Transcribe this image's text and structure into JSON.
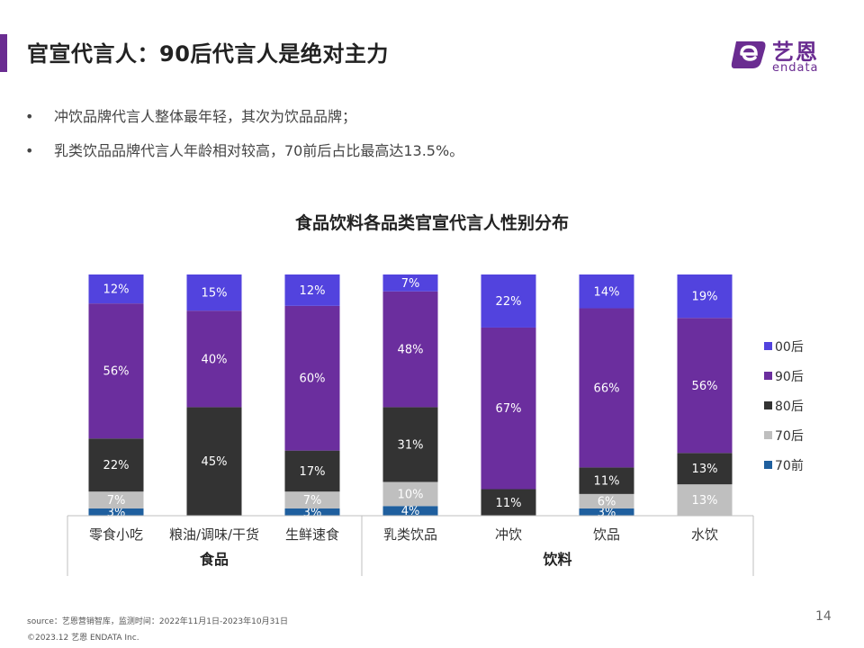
{
  "header": {
    "title": "官宣代言人：90后代言人是绝对主力",
    "logo_cn": "艺恩",
    "logo_en": "endata"
  },
  "bullets": [
    "冲饮品牌代言人整体最年轻，其次为饮品品牌；",
    "乳类饮品品牌代言人年龄相对较高，70前后占比最高达13.5%。"
  ],
  "colors": {
    "brand": "#6a2c91"
  },
  "chart_data": {
    "type": "bar",
    "stacked": true,
    "title": "食品饮料各品类官宣代言人性别分布",
    "categories": [
      "零食小吃",
      "粮油/调味/干货",
      "生鲜速食",
      "乳类饮品",
      "冲饮",
      "饮品",
      "水饮"
    ],
    "groups": [
      {
        "name": "食品",
        "categories": [
          "零食小吃",
          "粮油/调味/干货",
          "生鲜速食"
        ]
      },
      {
        "name": "饮料",
        "categories": [
          "乳类饮品",
          "冲饮",
          "饮品",
          "水饮"
        ]
      }
    ],
    "series": [
      {
        "name": "70前",
        "color": "#1f5f9e",
        "values": [
          3,
          0,
          3,
          4,
          0,
          3,
          0
        ],
        "labels": [
          "3%",
          "",
          "3%",
          "4%",
          "",
          "3%",
          ""
        ]
      },
      {
        "name": "70后",
        "color": "#bfbfbf",
        "values": [
          7,
          0,
          7,
          10,
          0,
          6,
          13
        ],
        "labels": [
          "7%",
          "",
          "7%",
          "10%",
          "",
          "6%",
          "13%"
        ]
      },
      {
        "name": "80后",
        "color": "#333333",
        "values": [
          22,
          45,
          17,
          31,
          11,
          11,
          13
        ],
        "labels": [
          "22%",
          "45%",
          "17%",
          "31%",
          "11%",
          "11%",
          "13%"
        ]
      },
      {
        "name": "90后",
        "color": "#6b2e9e",
        "values": [
          56,
          40,
          60,
          48,
          67,
          66,
          56
        ],
        "labels": [
          "56%",
          "40%",
          "60%",
          "48%",
          "67%",
          "66%",
          "56%"
        ]
      },
      {
        "name": "00后",
        "color": "#5243de",
        "values": [
          12,
          15,
          12,
          7,
          22,
          14,
          19
        ],
        "labels": [
          "12%",
          "15%",
          "12%",
          "7%",
          "22%",
          "14%",
          "19%"
        ]
      }
    ],
    "legend_order": [
      "00后",
      "90后",
      "80后",
      "70后",
      "70前"
    ],
    "legend_position": "right",
    "ylim": [
      0,
      100
    ]
  },
  "footer": {
    "source": "source：艺恩营销智库，监测时间：2022年11月1日-2023年10月31日",
    "copyright": "©2023.12  艺恩 ENDATA Inc.",
    "page_number": "14"
  }
}
